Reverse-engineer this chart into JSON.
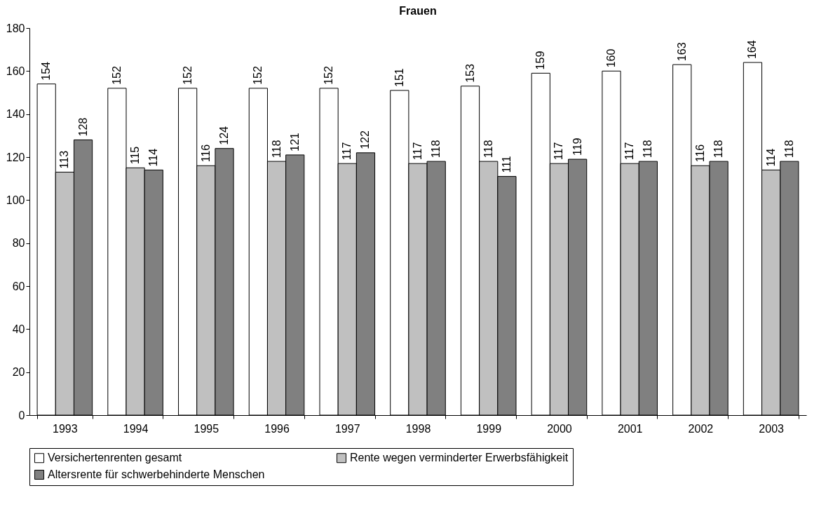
{
  "chart_data": {
    "type": "bar",
    "title": "Frauen",
    "categories": [
      "1993",
      "1994",
      "1995",
      "1996",
      "1997",
      "1998",
      "1999",
      "2000",
      "2001",
      "2002",
      "2003"
    ],
    "series": [
      {
        "name": "Versichertenrenten gesamt",
        "color": "#ffffff",
        "values": [
          154,
          152,
          152,
          152,
          152,
          151,
          153,
          159,
          160,
          163,
          164
        ]
      },
      {
        "name": "Rente wegen verminderter Erwerbsfähigkeit",
        "color": "#c0c0c0",
        "values": [
          113,
          115,
          116,
          118,
          117,
          117,
          118,
          117,
          117,
          116,
          114
        ]
      },
      {
        "name": "Altersrente für schwerbehinderte Menschen",
        "color": "#808080",
        "values": [
          128,
          114,
          124,
          121,
          122,
          118,
          111,
          119,
          118,
          118,
          118
        ]
      }
    ],
    "ylim": [
      0,
      180
    ],
    "yticks": [
      0,
      20,
      40,
      60,
      80,
      100,
      120,
      140,
      160,
      180
    ],
    "grid": false,
    "legend": "bottom",
    "data_labels": true
  }
}
